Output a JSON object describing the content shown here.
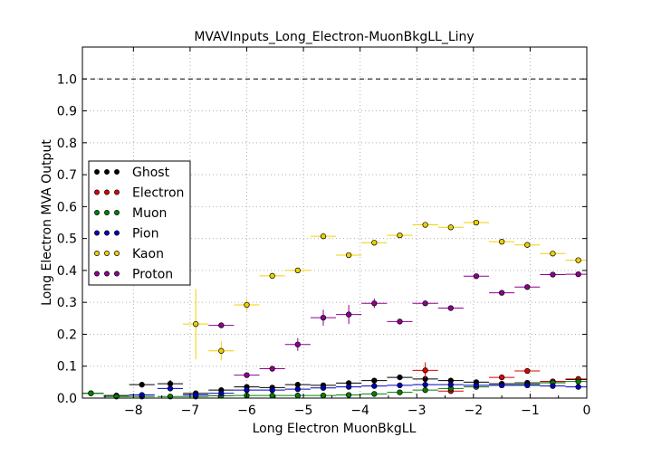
{
  "chart_data": {
    "type": "scatter",
    "title": "MVAVInputs_Long_Electron-MuonBkgLL_Liny",
    "xlabel": "Long Electron MuonBkgLL",
    "ylabel": "Long Electron MVA Output",
    "xlim": [
      -8.9,
      0
    ],
    "ylim": [
      0,
      1.1
    ],
    "x_ticks": [
      "−8",
      "−7",
      "−6",
      "−5",
      "−4",
      "−3",
      "−2",
      "−1",
      "0"
    ],
    "y_ticks": [
      "0.0",
      "0.1",
      "0.2",
      "0.3",
      "0.4",
      "0.5",
      "0.6",
      "0.7",
      "0.8",
      "0.9",
      "1.0"
    ],
    "reference_line": 1.0,
    "grid": true,
    "legend_position": "center-left",
    "bin_half_width": 0.225,
    "series": [
      {
        "name": "Ghost",
        "color": "#000000",
        "x": [
          -8.75,
          -8.3,
          -7.85,
          -7.35,
          -6.9,
          -6.45,
          -6.0,
          -5.55,
          -5.1,
          -4.65,
          -4.2,
          -3.75,
          -3.3,
          -2.85,
          -2.4,
          -1.95,
          -1.5,
          -1.05,
          -0.6,
          -0.15
        ],
        "y": [
          0.015,
          0.008,
          0.042,
          0.045,
          0.015,
          0.025,
          0.035,
          0.033,
          0.042,
          0.04,
          0.047,
          0.055,
          0.065,
          0.06,
          0.055,
          0.05,
          0.045,
          0.048,
          0.052,
          0.058
        ],
        "yerr": [
          0.003,
          0.003,
          0.004,
          0.012,
          0.005,
          0.004,
          0.004,
          0.004,
          0.004,
          0.004,
          0.004,
          0.004,
          0.005,
          0.005,
          0.005,
          0.004,
          0.004,
          0.004,
          0.004,
          0.004
        ]
      },
      {
        "name": "Electron",
        "color": "#e00000",
        "x": [
          -2.85,
          -2.4,
          -1.5,
          -1.05,
          -0.6,
          -0.15
        ],
        "y": [
          0.087,
          0.022,
          0.065,
          0.085,
          0.052,
          0.06
        ],
        "yerr": [
          0.025,
          0.005,
          0.008,
          0.008,
          0.006,
          0.006
        ]
      },
      {
        "name": "Muon",
        "color": "#008000",
        "x": [
          -8.75,
          -8.3,
          -7.85,
          -7.35,
          -6.9,
          -6.45,
          -6.0,
          -5.55,
          -5.1,
          -4.65,
          -4.2,
          -3.75,
          -3.3,
          -2.85,
          -2.4,
          -1.95,
          -1.5,
          -1.05,
          -0.6,
          -0.15
        ],
        "y": [
          0.015,
          0.005,
          0.005,
          0.005,
          0.005,
          0.007,
          0.008,
          0.008,
          0.008,
          0.008,
          0.01,
          0.013,
          0.018,
          0.025,
          0.03,
          0.035,
          0.04,
          0.043,
          0.048,
          0.052
        ],
        "yerr": [
          0.003,
          0.002,
          0.002,
          0.002,
          0.002,
          0.002,
          0.002,
          0.002,
          0.002,
          0.002,
          0.002,
          0.002,
          0.003,
          0.003,
          0.003,
          0.003,
          0.003,
          0.003,
          0.003,
          0.003
        ]
      },
      {
        "name": "Pion",
        "color": "#0000c0",
        "x": [
          -7.85,
          -7.35,
          -6.9,
          -6.45,
          -6.0,
          -5.55,
          -5.1,
          -4.65,
          -4.2,
          -3.75,
          -3.3,
          -2.85,
          -2.4,
          -1.95,
          -1.5,
          -1.05,
          -0.6,
          -0.15
        ],
        "y": [
          0.01,
          0.03,
          0.01,
          0.015,
          0.025,
          0.025,
          0.028,
          0.032,
          0.035,
          0.038,
          0.04,
          0.042,
          0.042,
          0.04,
          0.04,
          0.04,
          0.038,
          0.035
        ],
        "yerr": [
          0.004,
          0.006,
          0.004,
          0.004,
          0.004,
          0.004,
          0.004,
          0.004,
          0.004,
          0.004,
          0.004,
          0.004,
          0.004,
          0.004,
          0.004,
          0.004,
          0.004,
          0.004
        ]
      },
      {
        "name": "Kaon",
        "color": "#f0d000",
        "x": [
          -6.9,
          -6.45,
          -6.0,
          -5.55,
          -5.1,
          -4.65,
          -4.2,
          -3.75,
          -3.3,
          -2.85,
          -2.4,
          -1.95,
          -1.5,
          -1.05,
          -0.6,
          -0.15
        ],
        "y": [
          0.232,
          0.148,
          0.292,
          0.383,
          0.4,
          0.507,
          0.448,
          0.487,
          0.51,
          0.543,
          0.535,
          0.55,
          0.49,
          0.48,
          0.453,
          0.432
        ],
        "yerr": [
          0.11,
          0.03,
          0.018,
          0.01,
          0.008,
          0.005,
          0.006,
          0.005,
          0.005,
          0.005,
          0.005,
          0.005,
          0.005,
          0.005,
          0.005,
          0.005
        ]
      },
      {
        "name": "Proton",
        "color": "#900090",
        "x": [
          -6.45,
          -6.0,
          -5.55,
          -5.1,
          -4.65,
          -4.2,
          -3.75,
          -3.3,
          -2.85,
          -2.4,
          -1.95,
          -1.5,
          -1.05,
          -0.6,
          -0.15
        ],
        "y": [
          0.228,
          0.072,
          0.092,
          0.168,
          0.252,
          0.262,
          0.297,
          0.24,
          0.297,
          0.282,
          0.382,
          0.33,
          0.348,
          0.387,
          0.388
        ],
        "yerr": [
          0.005,
          0.005,
          0.005,
          0.02,
          0.025,
          0.03,
          0.015,
          0.006,
          0.006,
          0.006,
          0.006,
          0.006,
          0.006,
          0.006,
          0.006
        ]
      }
    ]
  }
}
